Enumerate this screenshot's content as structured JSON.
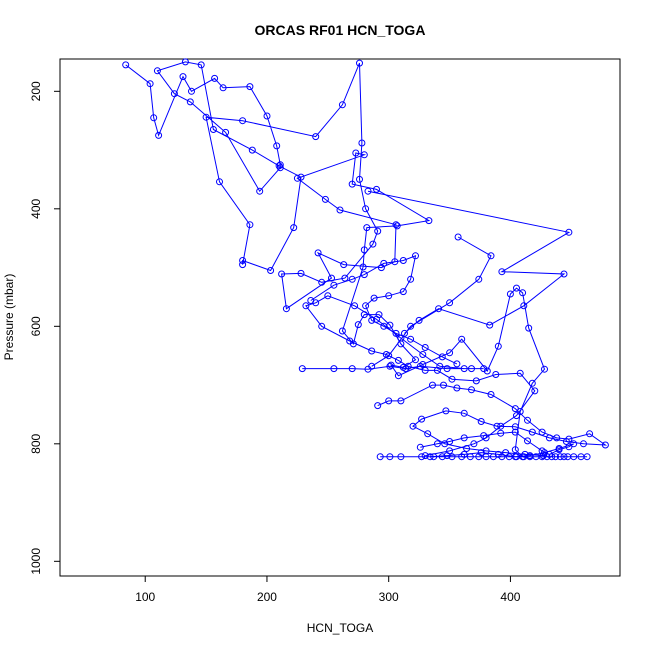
{
  "chart_data": {
    "type": "line",
    "title": "ORCAS RF01 HCN_TOGA",
    "xlabel": "HCN_TOGA",
    "ylabel": "Pressure (mbar)",
    "xlim": [
      30,
      490
    ],
    "ylim": [
      1025,
      145
    ],
    "y_reversed": true,
    "x_ticks": [
      100,
      200,
      300,
      400
    ],
    "y_ticks": [
      200,
      400,
      600,
      800,
      1000
    ],
    "grid": false,
    "legend": "none",
    "line_color": "#0000ff",
    "marker": "open-circle",
    "series": [
      {
        "points": [
          [
            84,
            155
          ],
          [
            104,
            187
          ],
          [
            107,
            245
          ],
          [
            111,
            275
          ],
          [
            131,
            175
          ],
          [
            138,
            200
          ],
          [
            157,
            178
          ],
          [
            164,
            194
          ],
          [
            186,
            192
          ],
          [
            200,
            242
          ],
          [
            208,
            293
          ],
          [
            211,
            325
          ],
          [
            211,
            330
          ],
          [
            194,
            370
          ],
          [
            166,
            270
          ],
          [
            137,
            218
          ],
          [
            124,
            204
          ],
          [
            110,
            165
          ],
          [
            133,
            150
          ],
          [
            146,
            155
          ],
          [
            156,
            265
          ],
          [
            188,
            300
          ],
          [
            210,
            327
          ],
          [
            228,
            346
          ],
          [
            222,
            432
          ],
          [
            203,
            505
          ],
          [
            180,
            488
          ],
          [
            180,
            495
          ],
          [
            186,
            427
          ],
          [
            161,
            354
          ],
          [
            150,
            244
          ],
          [
            180,
            250
          ],
          [
            240,
            277
          ],
          [
            262,
            223
          ],
          [
            276,
            152
          ],
          [
            278,
            288
          ],
          [
            276,
            350
          ],
          [
            281,
            400
          ],
          [
            291,
            438
          ],
          [
            287,
            460
          ],
          [
            264,
            518
          ],
          [
            245,
            525
          ],
          [
            228,
            510
          ],
          [
            212,
            511
          ],
          [
            216,
            570
          ],
          [
            253,
            518
          ],
          [
            242,
            475
          ],
          [
            263,
            495
          ],
          [
            294,
            500
          ],
          [
            305,
            490
          ],
          [
            306,
            427
          ],
          [
            260,
            402
          ],
          [
            248,
            384
          ],
          [
            225,
            348
          ],
          [
            280,
            308
          ],
          [
            273,
            305
          ],
          [
            270,
            358
          ],
          [
            290,
            367
          ],
          [
            333,
            420
          ],
          [
            307,
            429
          ],
          [
            282,
            432
          ],
          [
            280,
            470
          ],
          [
            279,
            499
          ],
          [
            262,
            608
          ],
          [
            271,
            630
          ],
          [
            275,
            597
          ],
          [
            280,
            580
          ],
          [
            292,
            580
          ],
          [
            301,
            598
          ],
          [
            310,
            630
          ],
          [
            322,
            657
          ],
          [
            312,
            670
          ],
          [
            302,
            666
          ],
          [
            308,
            684
          ],
          [
            328,
            665
          ],
          [
            350,
            645
          ],
          [
            360,
            622
          ],
          [
            381,
            676
          ],
          [
            390,
            634
          ],
          [
            400,
            545
          ],
          [
            405,
            535
          ],
          [
            410,
            543
          ],
          [
            415,
            603
          ],
          [
            428,
            673
          ],
          [
            418,
            697
          ],
          [
            408,
            745
          ],
          [
            404,
            810
          ],
          [
            410,
            822
          ]
        ]
      },
      {
        "points": [
          [
            229,
            672
          ],
          [
            255,
            672
          ],
          [
            270,
            672
          ],
          [
            283,
            673
          ],
          [
            301,
            668
          ],
          [
            314,
            672
          ],
          [
            326,
            668
          ],
          [
            348,
            672
          ],
          [
            368,
            672
          ],
          [
            378,
            672
          ],
          [
            362,
            672
          ],
          [
            342,
            668
          ],
          [
            328,
            648
          ],
          [
            310,
            620
          ],
          [
            290,
            588
          ],
          [
            272,
            565
          ],
          [
            250,
            548
          ],
          [
            240,
            560
          ],
          [
            232,
            565
          ],
          [
            245,
            600
          ],
          [
            268,
            625
          ],
          [
            286,
            642
          ],
          [
            298,
            648
          ],
          [
            308,
            658
          ],
          [
            316,
            668
          ],
          [
            330,
            675
          ],
          [
            340,
            675
          ],
          [
            352,
            690
          ],
          [
            372,
            693
          ],
          [
            388,
            682
          ],
          [
            408,
            680
          ],
          [
            420,
            710
          ],
          [
            405,
            752
          ],
          [
            392,
            770
          ],
          [
            380,
            790
          ],
          [
            370,
            800
          ],
          [
            350,
            812
          ],
          [
            330,
            820
          ]
        ]
      },
      {
        "points": [
          [
            291,
            735
          ],
          [
            300,
            727
          ],
          [
            310,
            727
          ],
          [
            336,
            700
          ],
          [
            345,
            700
          ],
          [
            356,
            705
          ],
          [
            368,
            708
          ],
          [
            384,
            716
          ],
          [
            404,
            740
          ],
          [
            414,
            760
          ],
          [
            426,
            780
          ],
          [
            438,
            790
          ],
          [
            448,
            792
          ],
          [
            465,
            783
          ],
          [
            478,
            802
          ],
          [
            460,
            800
          ],
          [
            446,
            796
          ],
          [
            432,
            790
          ],
          [
            418,
            780
          ],
          [
            404,
            771
          ],
          [
            389,
            770
          ],
          [
            376,
            762
          ],
          [
            362,
            748
          ],
          [
            347,
            744
          ],
          [
            327,
            758
          ],
          [
            320,
            770
          ],
          [
            332,
            783
          ],
          [
            346,
            800
          ],
          [
            364,
            808
          ],
          [
            380,
            812
          ],
          [
            396,
            815
          ],
          [
            412,
            818
          ],
          [
            427,
            820
          ]
        ]
      },
      {
        "points": [
          [
            293,
            822
          ],
          [
            301,
            822
          ],
          [
            310,
            822
          ],
          [
            327,
            822
          ],
          [
            337,
            822
          ],
          [
            344,
            822
          ],
          [
            352,
            822
          ],
          [
            360,
            822
          ],
          [
            367,
            822
          ],
          [
            374,
            822
          ],
          [
            380,
            822
          ],
          [
            386,
            822
          ],
          [
            393,
            822
          ],
          [
            399,
            822
          ],
          [
            405,
            822
          ],
          [
            411,
            822
          ],
          [
            416,
            822
          ],
          [
            421,
            822
          ],
          [
            426,
            822
          ],
          [
            430,
            822
          ],
          [
            434,
            822
          ],
          [
            437,
            822
          ],
          [
            441,
            822
          ],
          [
            444,
            822
          ],
          [
            447,
            822
          ],
          [
            452,
            822
          ],
          [
            458,
            822
          ],
          [
            463,
            822
          ]
        ]
      },
      {
        "points": [
          [
            326,
            806
          ],
          [
            340,
            800
          ],
          [
            350,
            796
          ],
          [
            362,
            790
          ],
          [
            378,
            786
          ],
          [
            392,
            782
          ],
          [
            404,
            780
          ],
          [
            414,
            795
          ],
          [
            426,
            812
          ],
          [
            432,
            818
          ],
          [
            440,
            810
          ],
          [
            448,
            805
          ],
          [
            452,
            800
          ],
          [
            440,
            808
          ],
          [
            428,
            815
          ],
          [
            416,
            820
          ],
          [
            404,
            822
          ],
          [
            390,
            818
          ],
          [
            376,
            815
          ],
          [
            362,
            818
          ],
          [
            348,
            820
          ],
          [
            334,
            822
          ]
        ]
      },
      {
        "points": [
          [
            236,
            556
          ],
          [
            255,
            530
          ],
          [
            270,
            520
          ],
          [
            280,
            512
          ],
          [
            296,
            493
          ],
          [
            312,
            488
          ],
          [
            322,
            480
          ],
          [
            318,
            520
          ],
          [
            312,
            541
          ],
          [
            300,
            548
          ],
          [
            288,
            552
          ],
          [
            281,
            565
          ],
          [
            286,
            590
          ],
          [
            296,
            600
          ],
          [
            306,
            612
          ],
          [
            318,
            622
          ],
          [
            330,
            636
          ],
          [
            344,
            652
          ],
          [
            356,
            664
          ]
        ]
      },
      {
        "points": [
          [
            283,
            370
          ],
          [
            448,
            440
          ],
          [
            393,
            507
          ],
          [
            444,
            511
          ],
          [
            411,
            565
          ],
          [
            383,
            598
          ],
          [
            341,
            570
          ],
          [
            325,
            590
          ],
          [
            313,
            612
          ]
        ]
      },
      {
        "points": [
          [
            357,
            448
          ],
          [
            384,
            480
          ],
          [
            374,
            520
          ],
          [
            350,
            560
          ],
          [
            318,
            600
          ],
          [
            300,
            650
          ],
          [
            286,
            668
          ]
        ]
      }
    ]
  }
}
